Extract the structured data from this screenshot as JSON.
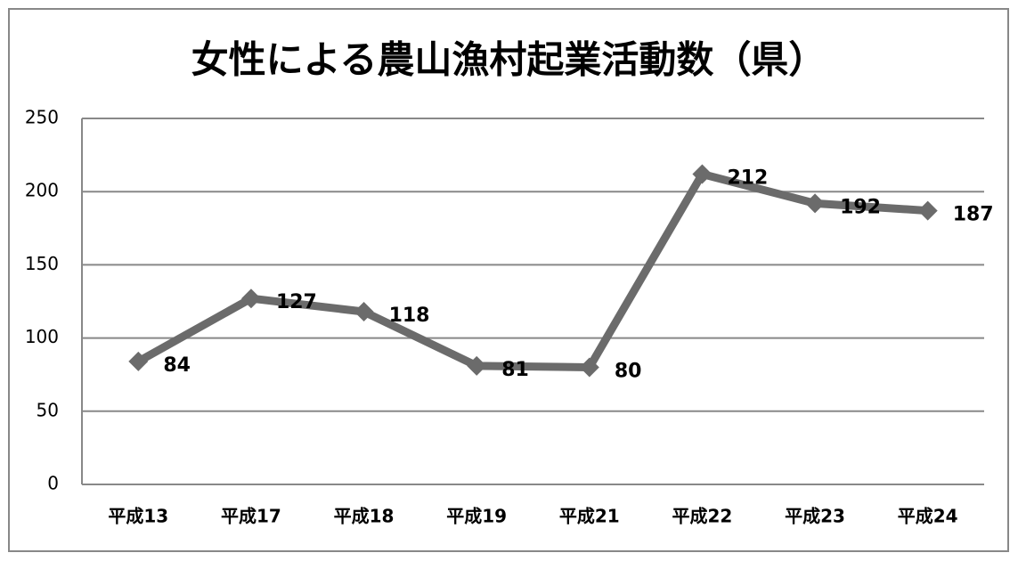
{
  "chart_data": {
    "type": "line",
    "title": "女性による農山漁村起業活動数（県）",
    "categories": [
      "平成13",
      "平成17",
      "平成18",
      "平成19",
      "平成21",
      "平成22",
      "平成23",
      "平成24"
    ],
    "values": [
      84,
      127,
      118,
      81,
      80,
      212,
      192,
      187
    ],
    "color": "#6b6b6b",
    "ylim": [
      0,
      250
    ],
    "yticks": [
      0,
      50,
      100,
      150,
      200,
      250
    ],
    "grid": true
  }
}
